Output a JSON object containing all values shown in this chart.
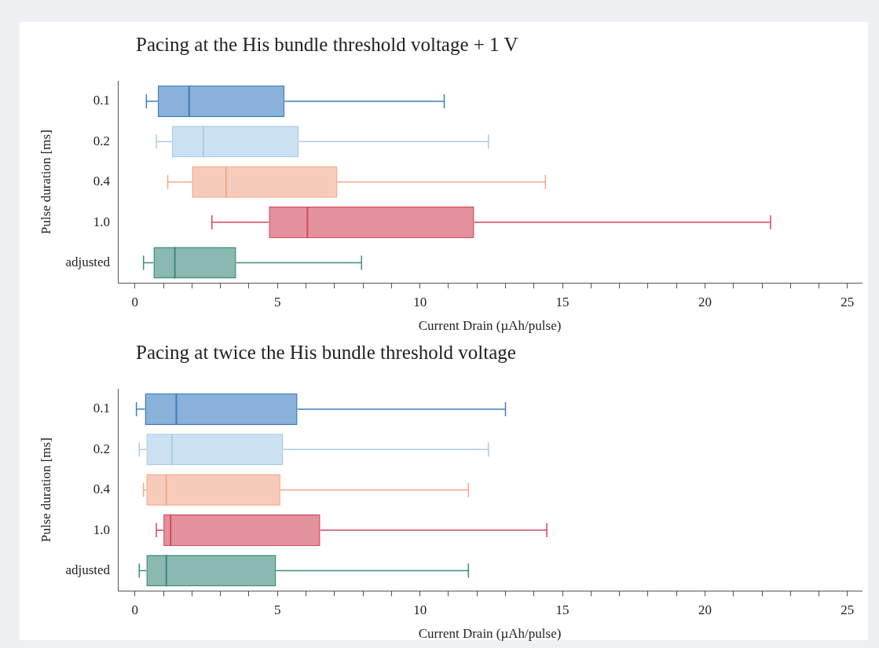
{
  "chart_data": [
    {
      "type": "box",
      "title": "Pacing at the His bundle threshold voltage + 1 V",
      "xlabel": "Current Drain (µAh/pulse)",
      "ylabel": "Pulse duration [ms]",
      "orientation": "horizontal",
      "categories": [
        "0.1",
        "0.2",
        "0.4",
        "1.0",
        "adjusted"
      ],
      "colors": [
        "#3a7dbf",
        "#a9cde8",
        "#f2a98a",
        "#d1495b",
        "#3b8a7c"
      ],
      "boxes": [
        {
          "low": 0.4,
          "q1": 0.8,
          "median": 1.9,
          "q3": 5.25,
          "high": 10.85
        },
        {
          "low": 0.75,
          "q1": 1.3,
          "median": 2.4,
          "q3": 5.75,
          "high": 12.4
        },
        {
          "low": 1.15,
          "q1": 2.0,
          "median": 3.2,
          "q3": 7.1,
          "high": 14.4
        },
        {
          "low": 2.7,
          "q1": 4.7,
          "median": 6.05,
          "q3": 11.9,
          "high": 22.3
        },
        {
          "low": 0.3,
          "q1": 0.65,
          "median": 1.4,
          "q3": 3.55,
          "high": 7.95
        }
      ],
      "xlim": [
        -0.6,
        25.5
      ],
      "xticks": [
        0,
        {
          "value": 1,
          "label": null
        },
        {
          "value": 2,
          "label": null
        },
        {
          "value": 3,
          "label": null
        },
        {
          "value": 4,
          "label": null
        },
        5,
        {
          "value": 6,
          "label": null
        },
        {
          "value": 7,
          "label": null
        },
        {
          "value": 8,
          "label": null
        },
        {
          "value": 9,
          "label": null
        },
        10,
        {
          "value": 11,
          "label": null
        },
        {
          "value": 12,
          "label": null
        },
        {
          "value": 13,
          "label": null
        },
        {
          "value": 14,
          "label": null
        },
        15,
        {
          "value": 16,
          "label": null
        },
        {
          "value": 17,
          "label": null
        },
        {
          "value": 18,
          "label": null
        },
        {
          "value": 19,
          "label": null
        },
        20,
        {
          "value": 21,
          "label": null
        },
        {
          "value": 22,
          "label": null
        },
        {
          "value": 23,
          "label": null
        },
        {
          "value": 24,
          "label": null
        },
        25
      ],
      "grid": false,
      "legend": false
    },
    {
      "type": "box",
      "title": "Pacing at twice the His bundle threshold voltage",
      "xlabel": "Current Drain (µAh/pulse)",
      "ylabel": "Pulse duration [ms]",
      "orientation": "horizontal",
      "categories": [
        "0.1",
        "0.2",
        "0.4",
        "1.0",
        "adjusted"
      ],
      "colors": [
        "#3a7dbf",
        "#a9cde8",
        "#f2a98a",
        "#d1495b",
        "#3b8a7c"
      ],
      "boxes": [
        {
          "low": 0.05,
          "q1": 0.35,
          "median": 1.45,
          "q3": 5.7,
          "high": 13.0
        },
        {
          "low": 0.15,
          "q1": 0.4,
          "median": 1.3,
          "q3": 5.2,
          "high": 12.4
        },
        {
          "low": 0.3,
          "q1": 0.4,
          "median": 1.1,
          "q3": 5.1,
          "high": 11.7
        },
        {
          "low": 0.75,
          "q1": 1.0,
          "median": 1.25,
          "q3": 6.5,
          "high": 14.45
        },
        {
          "low": 0.15,
          "q1": 0.4,
          "median": 1.1,
          "q3": 4.95,
          "high": 11.7
        }
      ],
      "xlim": [
        -0.6,
        25.5
      ],
      "xticks": [
        0,
        {
          "value": 1,
          "label": null
        },
        {
          "value": 2,
          "label": null
        },
        {
          "value": 3,
          "label": null
        },
        {
          "value": 4,
          "label": null
        },
        5,
        {
          "value": 6,
          "label": null
        },
        {
          "value": 7,
          "label": null
        },
        {
          "value": 8,
          "label": null
        },
        {
          "value": 9,
          "label": null
        },
        10,
        {
          "value": 11,
          "label": null
        },
        {
          "value": 12,
          "label": null
        },
        {
          "value": 13,
          "label": null
        },
        {
          "value": 14,
          "label": null
        },
        15,
        {
          "value": 16,
          "label": null
        },
        {
          "value": 17,
          "label": null
        },
        {
          "value": 18,
          "label": null
        },
        {
          "value": 19,
          "label": null
        },
        20,
        {
          "value": 21,
          "label": null
        },
        {
          "value": 22,
          "label": null
        },
        {
          "value": 23,
          "label": null
        },
        {
          "value": 24,
          "label": null
        },
        25
      ],
      "grid": false,
      "legend": false
    }
  ]
}
